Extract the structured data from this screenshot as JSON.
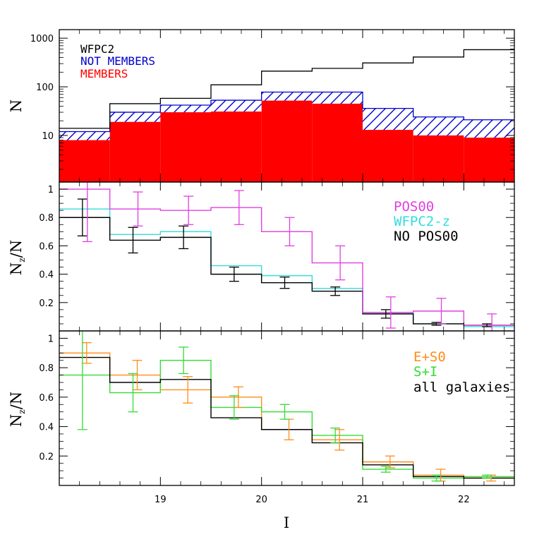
{
  "chart_data": [
    {
      "type": "histogram",
      "panel": "top",
      "ylabel": "N",
      "yscale": "log",
      "ylim": [
        1.1,
        1500
      ],
      "xlim": [
        18,
        22.5
      ],
      "bin_edges": [
        18,
        18.5,
        19,
        19.5,
        20,
        20.5,
        21,
        21.5,
        22,
        22.5
      ],
      "yticks": [
        10,
        100,
        1000
      ],
      "ytick_labels": [
        "10",
        "100",
        "1000"
      ],
      "series": [
        {
          "name": "WFPC2",
          "color": "#000000",
          "style": "step",
          "values": [
            14,
            45,
            58,
            110,
            210,
            240,
            310,
            410,
            580
          ]
        },
        {
          "name": "NOT MEMBERS",
          "color": "#0000cc",
          "style": "hatched",
          "values": [
            12,
            30,
            42,
            53,
            78,
            78,
            36,
            24,
            21
          ]
        },
        {
          "name": "MEMBERS",
          "color": "#ff0000",
          "style": "filled",
          "values": [
            8,
            19,
            30,
            31,
            52,
            45,
            13,
            10,
            9
          ]
        }
      ]
    },
    {
      "type": "histogram",
      "panel": "middle",
      "ylabel_main": "N",
      "ylabel_sub": "z",
      "ylabel_tail": "/N",
      "ylim": [
        0,
        1.05
      ],
      "xlim": [
        18,
        22.5
      ],
      "bin_edges": [
        18,
        18.5,
        19,
        19.5,
        20,
        20.5,
        21,
        21.5,
        22,
        22.5
      ],
      "yticks": [
        0.2,
        0.4,
        0.6,
        0.8,
        1
      ],
      "ytick_labels": [
        "0.2",
        "0.4",
        "0.6",
        "0.8",
        "1"
      ],
      "series": [
        {
          "name": "POS00",
          "color": "#e040e0",
          "values": [
            1.0,
            0.86,
            0.85,
            0.87,
            0.7,
            0.48,
            0.13,
            0.14,
            0.04
          ],
          "errors": [
            0.37,
            0.12,
            0.1,
            0.12,
            0.1,
            0.12,
            0.11,
            0.09,
            0.08
          ]
        },
        {
          "name": "WFPC2-z",
          "color": "#33dddd",
          "values": [
            0.86,
            0.68,
            0.7,
            0.46,
            0.39,
            0.3,
            0.13,
            0.05,
            0.03
          ],
          "errors": [
            0,
            0,
            0,
            0,
            0,
            0,
            0,
            0,
            0
          ]
        },
        {
          "name": "NO POS00",
          "color": "#000000",
          "values": [
            0.8,
            0.64,
            0.66,
            0.4,
            0.34,
            0.28,
            0.12,
            0.05,
            0.04
          ],
          "errors": [
            0.13,
            0.09,
            0.08,
            0.05,
            0.04,
            0.03,
            0.03,
            0.01,
            0.01
          ]
        }
      ]
    },
    {
      "type": "histogram",
      "panel": "bottom",
      "ylabel_main": "N",
      "ylabel_sub": "z",
      "ylabel_tail": "/N",
      "xlabel": "I",
      "ylim": [
        0,
        1.05
      ],
      "xlim": [
        18,
        22.5
      ],
      "bin_edges": [
        18,
        18.5,
        19,
        19.5,
        20,
        20.5,
        21,
        21.5,
        22,
        22.5
      ],
      "yticks": [
        0.2,
        0.4,
        0.6,
        0.8,
        1
      ],
      "ytick_labels": [
        "0.2",
        "0.4",
        "0.6",
        "0.8",
        "1"
      ],
      "xticks": [
        19,
        20,
        21,
        22
      ],
      "xtick_labels": [
        "19",
        "20",
        "21",
        "22"
      ],
      "series": [
        {
          "name": "E+S0",
          "color": "#ff8c1a",
          "values": [
            0.9,
            0.75,
            0.65,
            0.6,
            0.38,
            0.31,
            0.16,
            0.07,
            0.05
          ],
          "errors": [
            0.07,
            0.1,
            0.09,
            0.07,
            0.07,
            0.07,
            0.04,
            0.04,
            0.02
          ]
        },
        {
          "name": "S+I",
          "color": "#33dd33",
          "values": [
            0.75,
            0.63,
            0.85,
            0.53,
            0.5,
            0.34,
            0.11,
            0.05,
            0.06
          ],
          "errors": [
            0.37,
            0.13,
            0.09,
            0.08,
            0.05,
            0.05,
            0.02,
            0.02,
            0.01
          ]
        },
        {
          "name": "all galaxies",
          "color": "#000000",
          "values": [
            0.87,
            0.7,
            0.72,
            0.46,
            0.38,
            0.29,
            0.14,
            0.06,
            0.05
          ],
          "errors": [
            0,
            0,
            0,
            0,
            0,
            0,
            0,
            0,
            0
          ]
        }
      ]
    }
  ]
}
